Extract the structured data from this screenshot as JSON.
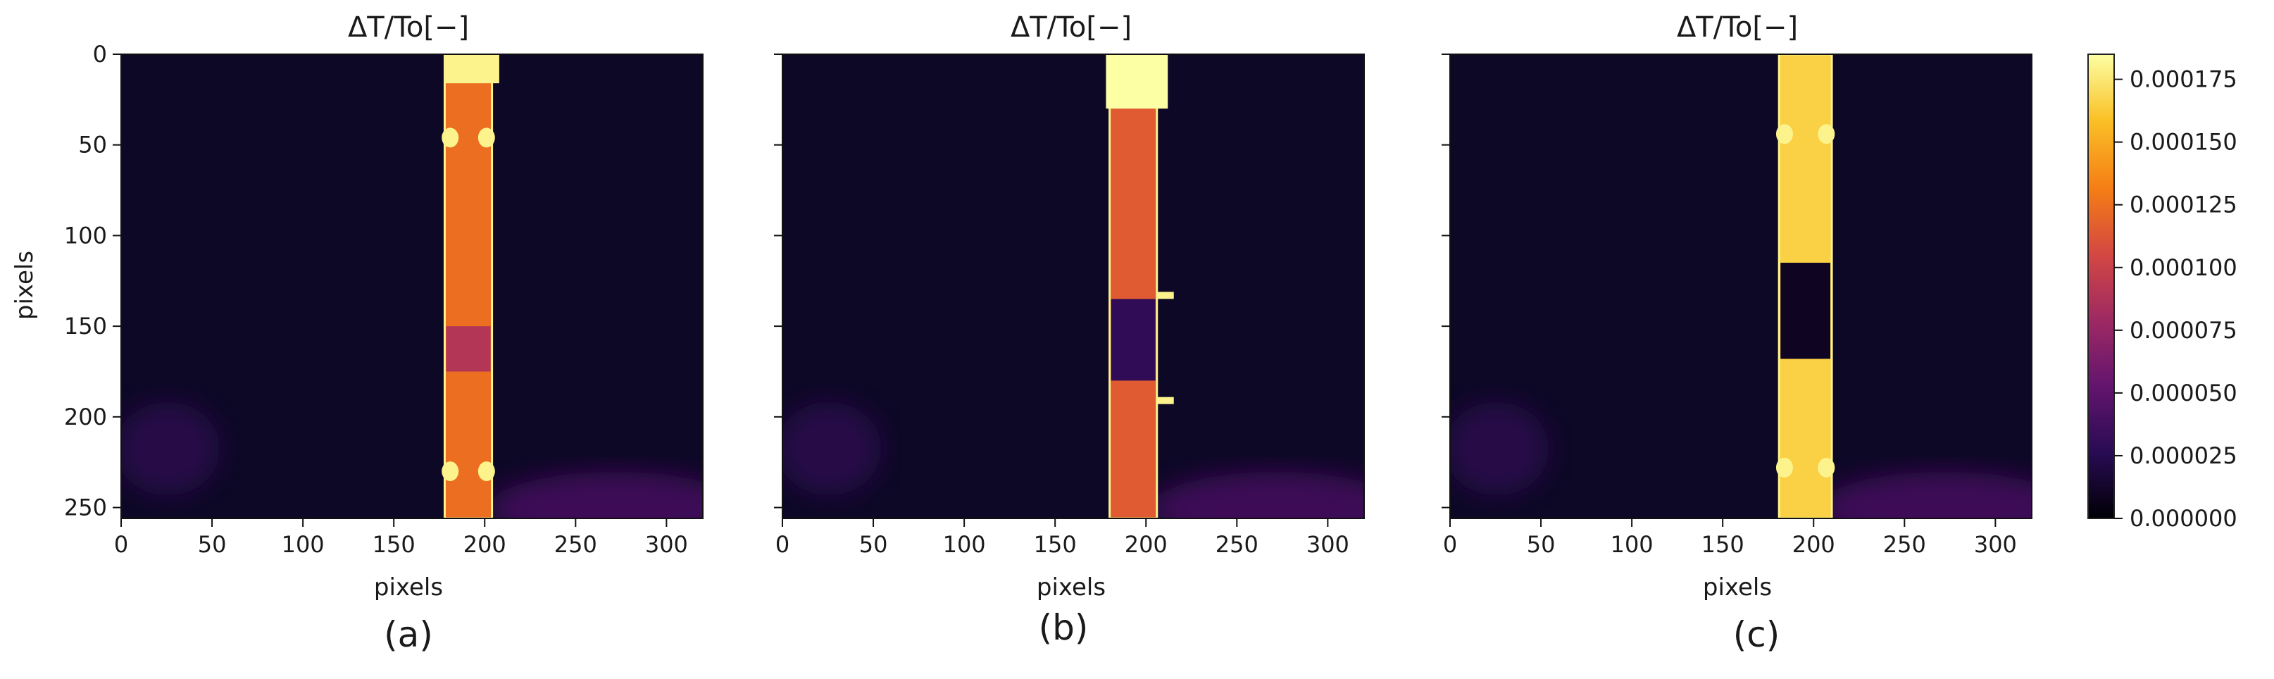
{
  "colors": {
    "colormap": "inferno",
    "background_dark": "#0d0826",
    "stop_0": "#000004",
    "stop_1": "#280b53",
    "stop_2": "#65156e",
    "stop_3": "#9f2a63",
    "stop_4": "#d44842",
    "stop_5": "#f57d15",
    "stop_6": "#fac127",
    "stop_7": "#fcffa4"
  },
  "chart_data": [
    {
      "type": "heatmap",
      "panel_label": "(a)",
      "title": "ΔT/To[−]",
      "xlabel": "pixels",
      "ylabel": "pixels",
      "xlim": [
        0,
        320
      ],
      "ylim": [
        256,
        0
      ],
      "xticks": [
        0,
        50,
        100,
        150,
        200,
        250,
        300
      ],
      "yticks": [
        0,
        50,
        100,
        150,
        200,
        250
      ],
      "strip": {
        "x_start": 178,
        "x_end": 204,
        "level": 0.000125
      },
      "features": [
        {
          "kind": "bright_cap",
          "x": [
            178,
            208
          ],
          "y": [
            0,
            16
          ],
          "level": 0.00018
        },
        {
          "kind": "spot_pair",
          "y": 46,
          "level": 0.00018
        },
        {
          "kind": "spot_pair",
          "y": 230,
          "level": 0.00018
        },
        {
          "kind": "dark_band",
          "y": [
            150,
            175
          ],
          "level": 9e-05
        }
      ]
    },
    {
      "type": "heatmap",
      "panel_label": "(b)",
      "title": "ΔT/To[−]",
      "xlabel": "pixels",
      "ylabel": "",
      "xlim": [
        0,
        320
      ],
      "ylim": [
        256,
        0
      ],
      "xticks": [
        0,
        50,
        100,
        150,
        200,
        250,
        300
      ],
      "yticks": [
        0,
        50,
        100,
        150,
        200,
        250
      ],
      "strip": {
        "x_start": 180,
        "x_end": 206,
        "level": 0.000115
      },
      "features": [
        {
          "kind": "bright_cap",
          "x": [
            178,
            212
          ],
          "y": [
            0,
            30
          ],
          "level": 0.000185
        },
        {
          "kind": "dark_band",
          "y": [
            135,
            180
          ],
          "level": 3e-05
        },
        {
          "kind": "side_tab",
          "y": 133,
          "level": 0.00018
        },
        {
          "kind": "side_tab",
          "y": 191,
          "level": 0.00018
        }
      ]
    },
    {
      "type": "heatmap",
      "panel_label": "(c)",
      "title": "ΔT/To[−]",
      "xlabel": "pixels",
      "ylabel": "",
      "xlim": [
        0,
        320
      ],
      "ylim": [
        256,
        0
      ],
      "xticks": [
        0,
        50,
        100,
        150,
        200,
        250,
        300
      ],
      "yticks": [
        0,
        50,
        100,
        150,
        200,
        250
      ],
      "strip": {
        "x_start": 181,
        "x_end": 210,
        "level": 0.000165
      },
      "features": [
        {
          "kind": "dark_band",
          "y": [
            115,
            168
          ],
          "level": 1e-05
        },
        {
          "kind": "spot_pair",
          "y": 44,
          "level": 0.00018
        },
        {
          "kind": "spot_pair",
          "y": 228,
          "level": 0.00018
        }
      ]
    }
  ],
  "colorbar": {
    "ticks": [
      "0.000000",
      "0.000025",
      "0.000050",
      "0.000075",
      "0.000100",
      "0.000125",
      "0.000150",
      "0.000175"
    ],
    "tick_values": [
      0,
      2.5e-05,
      5e-05,
      7.5e-05,
      0.0001,
      0.000125,
      0.00015,
      0.000175
    ],
    "vmin": 0,
    "vmax": 0.000185
  }
}
